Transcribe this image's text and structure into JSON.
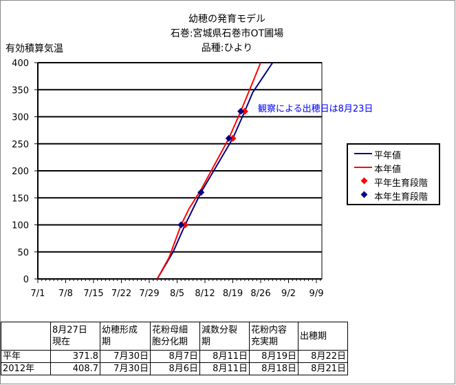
{
  "title_lines": [
    "幼穂の発育モデル",
    "石巻:宮城県石巻市OT圃場",
    "品種:ひより"
  ],
  "chart_data": {
    "type": "line",
    "ylabel": "有効積算気温",
    "ylim": [
      0,
      400
    ],
    "yticks": [
      0,
      50,
      100,
      150,
      200,
      250,
      300,
      350,
      400
    ],
    "xticks": [
      "7/1",
      "7/8",
      "7/15",
      "7/22",
      "7/29",
      "8/5",
      "8/12",
      "8/19",
      "8/26",
      "9/2",
      "9/9"
    ],
    "grid": "horizontal",
    "legend_position": "right",
    "annotation": "観察による出穂日は8月23日",
    "series": [
      {
        "name": "平年値",
        "kind": "line",
        "color": "#000080",
        "points": [
          [
            "7/31",
            0
          ],
          [
            "8/4",
            50
          ],
          [
            "8/7",
            100
          ],
          [
            "8/11",
            160
          ],
          [
            "8/15",
            210
          ],
          [
            "8/19",
            260
          ],
          [
            "8/22",
            310
          ],
          [
            "8/24",
            345
          ],
          [
            "8/29",
            400
          ]
        ]
      },
      {
        "name": "本年値",
        "kind": "line",
        "color": "#ff0000",
        "points": [
          [
            "7/31",
            0
          ],
          [
            "8/3",
            40
          ],
          [
            "8/6",
            100
          ],
          [
            "8/8",
            130
          ],
          [
            "8/11",
            165
          ],
          [
            "8/18",
            260
          ],
          [
            "8/21",
            310
          ],
          [
            "8/26",
            400
          ]
        ]
      },
      {
        "name": "平年生育段階",
        "kind": "marker",
        "color": "#ff0000",
        "points": [
          [
            "8/7",
            100
          ],
          [
            "8/11",
            160
          ],
          [
            "8/19",
            260
          ],
          [
            "8/22",
            310
          ]
        ]
      },
      {
        "name": "本年生育段階",
        "kind": "marker",
        "color": "#000080",
        "points": [
          [
            "8/6",
            100
          ],
          [
            "8/11",
            160
          ],
          [
            "8/18",
            260
          ],
          [
            "8/21",
            310
          ]
        ]
      }
    ]
  },
  "table": {
    "headers": [
      "",
      "8月27日\n現在",
      "幼穂形成\n期",
      "花粉母細\n胞分化期",
      "減数分裂\n期",
      "花粉内容\n充実期",
      "出穂期"
    ],
    "rows": [
      [
        "平年",
        "371.8",
        "7月30日",
        "8月7日",
        "8月11日",
        "8月19日",
        "8月22日"
      ],
      [
        "2012年",
        "408.7",
        "7月30日",
        "8月6日",
        "8月11日",
        "8月18日",
        "8月21日"
      ]
    ]
  }
}
